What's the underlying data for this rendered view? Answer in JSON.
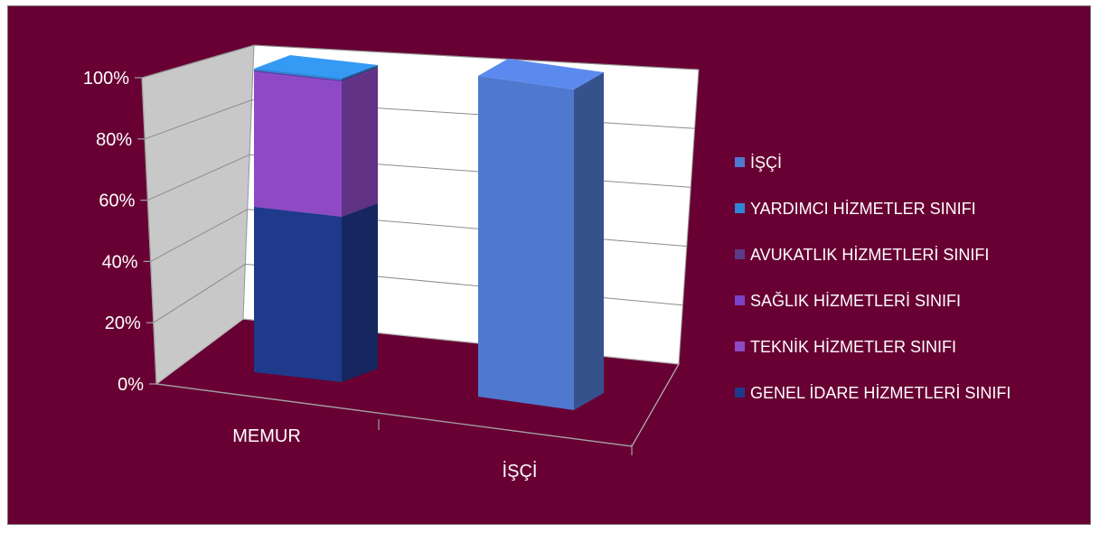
{
  "chart_data": {
    "type": "bar",
    "stacked": true,
    "percent_stacked": true,
    "three_d": true,
    "title": "",
    "xlabel": "",
    "ylabel": "",
    "categories": [
      "MEMUR",
      "İŞÇİ"
    ],
    "yticks": [
      "0%",
      "20%",
      "40%",
      "60%",
      "80%",
      "100%"
    ],
    "ylim": [
      0,
      100
    ],
    "grid": true,
    "legend_position": "right",
    "series": [
      {
        "name": "GENEL İDARE HİZMETLERİ SINIFI",
        "color": "#1f3a8a",
        "values": [
          54.5,
          0
        ]
      },
      {
        "name": "TEKNİK HİZMETLER SINIFI",
        "color": "#8e4ac4",
        "values": [
          44.3,
          0
        ]
      },
      {
        "name": "SAĞLIK HİZMETLERİ SINIFI",
        "color": "#7a42c8",
        "values": [
          0.3,
          0
        ]
      },
      {
        "name": "AVUKATLIK HİZMETLERİ SINIFI",
        "color": "#5e3a8a",
        "values": [
          0.3,
          0
        ]
      },
      {
        "name": "YARDIMCI HİZMETLER SINIFI",
        "color": "#2e86d4",
        "values": [
          0.6,
          0
        ]
      },
      {
        "name": "İŞÇİ",
        "color": "#4f78cf",
        "values": [
          0,
          100
        ]
      }
    ]
  }
}
